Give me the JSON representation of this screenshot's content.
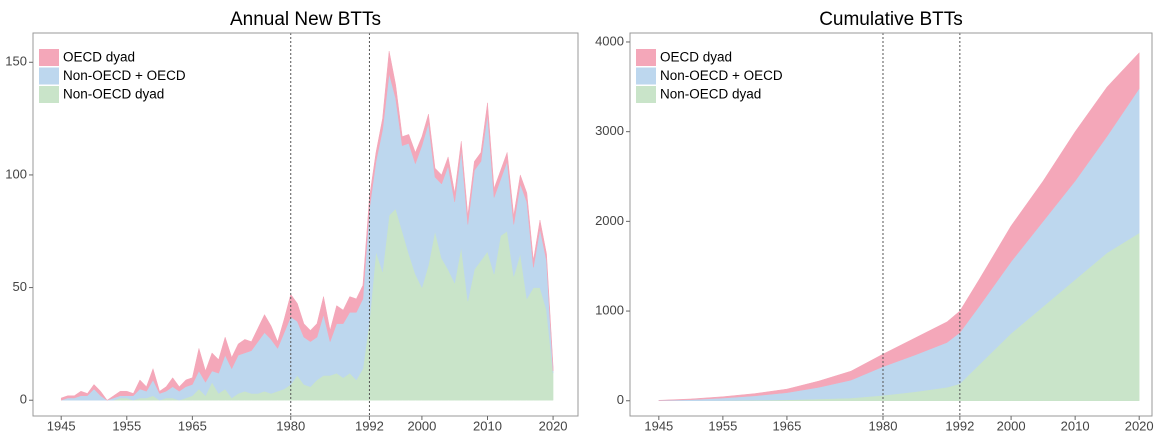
{
  "chart_data": [
    {
      "type": "stacked-area",
      "title": "Annual New BTTs",
      "legend": "upper left",
      "grid": false,
      "x": [
        1945,
        1946,
        1947,
        1948,
        1949,
        1950,
        1951,
        1952,
        1953,
        1954,
        1955,
        1956,
        1957,
        1958,
        1959,
        1960,
        1961,
        1962,
        1963,
        1964,
        1965,
        1966,
        1967,
        1968,
        1969,
        1970,
        1971,
        1972,
        1973,
        1974,
        1975,
        1976,
        1977,
        1978,
        1979,
        1980,
        1981,
        1982,
        1983,
        1984,
        1985,
        1986,
        1987,
        1988,
        1989,
        1990,
        1991,
        1992,
        1993,
        1994,
        1995,
        1996,
        1997,
        1998,
        1999,
        2000,
        2001,
        2002,
        2003,
        2004,
        2005,
        2006,
        2007,
        2008,
        2009,
        2010,
        2011,
        2012,
        2013,
        2014,
        2015,
        2016,
        2017,
        2018,
        2019,
        2020
      ],
      "xlim": [
        1940.7,
        2023.8
      ],
      "xticks": [
        1945,
        1955,
        1965,
        1980,
        1992,
        2000,
        2010,
        2020
      ],
      "vlines": [
        1980,
        1992
      ],
      "ylim": [
        -7,
        163
      ],
      "yticks": [
        0,
        50,
        100,
        150
      ],
      "series": [
        {
          "name": "Non-OECD dyad",
          "color": "#c9e4c9",
          "values": [
            0,
            0,
            0,
            0,
            0,
            0,
            0,
            0,
            0,
            1,
            1,
            0,
            1,
            1,
            2,
            0,
            1,
            1,
            0,
            1,
            2,
            5,
            2,
            8,
            3,
            5,
            1,
            3,
            4,
            3,
            3,
            4,
            3,
            4,
            5,
            7,
            11,
            7,
            6,
            9,
            11,
            11,
            12,
            10,
            12,
            9,
            14,
            35,
            66,
            57,
            82,
            85,
            75,
            65,
            56,
            50,
            60,
            75,
            63,
            58,
            52,
            68,
            44,
            58,
            62,
            66,
            56,
            73,
            75,
            55,
            65,
            45,
            50,
            50,
            40,
            12
          ]
        },
        {
          "name": "Non-OECD + OECD",
          "color": "#bdd7ee",
          "values": [
            0,
            1,
            1,
            2,
            2,
            5,
            2,
            0,
            1,
            1,
            1,
            2,
            4,
            3,
            7,
            3,
            3,
            5,
            4,
            5,
            5,
            8,
            6,
            5,
            9,
            15,
            13,
            17,
            17,
            19,
            23,
            26,
            24,
            19,
            25,
            30,
            24,
            21,
            20,
            19,
            27,
            15,
            22,
            24,
            27,
            30,
            31,
            50,
            40,
            63,
            63,
            49,
            38,
            49,
            49,
            63,
            63,
            24,
            33,
            46,
            36,
            43,
            34,
            44,
            44,
            61,
            34,
            25,
            31,
            23,
            31,
            43,
            9,
            26,
            22,
            1
          ]
        },
        {
          "name": "OECD dyad",
          "color": "#f4a7b9",
          "values": [
            1,
            1,
            1,
            2,
            1,
            2,
            2,
            0,
            1,
            2,
            2,
            1,
            4,
            2,
            5,
            1,
            2,
            4,
            2,
            3,
            3,
            10,
            5,
            8,
            6,
            8,
            5,
            5,
            6,
            4,
            6,
            8,
            6,
            3,
            6,
            10,
            8,
            6,
            5,
            6,
            8,
            5,
            8,
            6,
            7,
            6,
            6,
            5,
            4,
            5,
            10,
            6,
            4,
            4,
            5,
            4,
            4,
            4,
            4,
            4,
            4,
            4,
            4,
            4,
            4,
            5,
            4,
            4,
            4,
            4,
            4,
            4,
            3,
            4,
            3,
            2
          ]
        }
      ]
    },
    {
      "type": "stacked-area",
      "title": "Cumulative BTTs",
      "legend": "upper left",
      "grid": false,
      "x": [
        1945,
        1950,
        1955,
        1960,
        1965,
        1970,
        1975,
        1980,
        1985,
        1990,
        1992,
        1995,
        2000,
        2005,
        2010,
        2015,
        2020
      ],
      "xlim": [
        1940.5,
        2022
      ],
      "xticks": [
        1945,
        1955,
        1965,
        1980,
        1992,
        2000,
        2010,
        2020
      ],
      "vlines": [
        1980,
        1992
      ],
      "ylim": [
        -170,
        4100
      ],
      "yticks": [
        0,
        1000,
        2000,
        3000,
        4000
      ],
      "series": [
        {
          "name": "Non-OECD dyad",
          "color": "#c9e4c9",
          "values": [
            0,
            0,
            2,
            5,
            10,
            20,
            30,
            60,
            100,
            150,
            190,
            400,
            750,
            1050,
            1350,
            1650,
            1870
          ]
        },
        {
          "name": "Non-OECD + OECD",
          "color": "#bdd7ee",
          "values": [
            3,
            12,
            28,
            50,
            80,
            130,
            200,
            320,
            410,
            500,
            570,
            650,
            800,
            950,
            1100,
            1300,
            1610
          ]
        },
        {
          "name": "OECD dyad",
          "color": "#f4a7b9",
          "values": [
            2,
            8,
            15,
            25,
            40,
            70,
            100,
            140,
            190,
            230,
            240,
            300,
            400,
            450,
            550,
            550,
            400
          ]
        }
      ]
    }
  ]
}
